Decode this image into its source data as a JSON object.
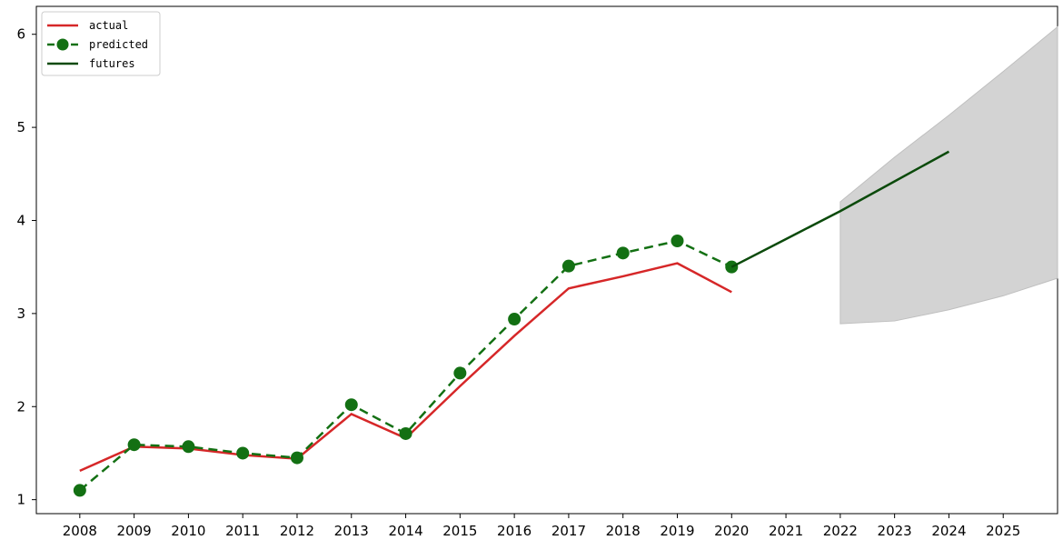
{
  "chart_data": {
    "type": "line",
    "title": "",
    "xlabel": "",
    "ylabel": "",
    "x_ticks": [
      "2008",
      "2009",
      "2010",
      "2011",
      "2012",
      "2013",
      "2014",
      "2015",
      "2016",
      "2017",
      "2018",
      "2019",
      "2020",
      "2021",
      "2022",
      "2023",
      "2024",
      "2025"
    ],
    "y_ticks": [
      1,
      2,
      3,
      4,
      5,
      6
    ],
    "ylim": [
      0.85,
      6.3
    ],
    "xlim": [
      2007.2,
      2026.0
    ],
    "grid": false,
    "legend_position": "top-left",
    "series": [
      {
        "name": "actual",
        "style": "solid",
        "color": "#d62728",
        "x": [
          2008,
          2009,
          2010,
          2011,
          2012,
          2013,
          2014,
          2015,
          2016,
          2017,
          2018,
          2019,
          2020
        ],
        "y": [
          1.31,
          1.57,
          1.55,
          1.48,
          1.44,
          1.92,
          1.66,
          2.22,
          2.76,
          3.27,
          3.4,
          3.54,
          3.23
        ]
      },
      {
        "name": "predicted",
        "style": "dashed-markers",
        "color": "#137013",
        "x": [
          2008,
          2009,
          2010,
          2011,
          2012,
          2013,
          2014,
          2015,
          2016,
          2017,
          2018,
          2019,
          2020
        ],
        "y": [
          1.1,
          1.59,
          1.57,
          1.5,
          1.45,
          2.02,
          1.71,
          2.36,
          2.94,
          3.51,
          3.65,
          3.78,
          3.5
        ]
      },
      {
        "name": "futures",
        "style": "solid",
        "color": "#0b4a0b",
        "x": [
          2020,
          2021,
          2022,
          2023,
          2024
        ],
        "y": [
          3.5,
          3.8,
          4.1,
          4.42,
          4.74
        ]
      }
    ],
    "confidence_band": {
      "color": "#d3d3d3",
      "x": [
        2022,
        2023,
        2024,
        2025,
        2026
      ],
      "upper": [
        4.2,
        4.68,
        5.13,
        5.6,
        6.08
      ],
      "lower": [
        2.89,
        2.92,
        3.04,
        3.19,
        3.38
      ]
    }
  }
}
